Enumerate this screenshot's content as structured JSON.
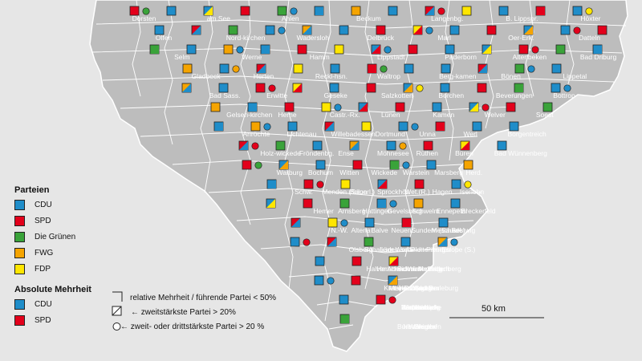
{
  "map": {
    "colors": {
      "background": "#e6e6e6",
      "land": "#bdbdbd",
      "border": "#ffffff",
      "cdu": "#1f8dc9",
      "spd": "#e3001b",
      "gruene": "#3aa33a",
      "fwg": "#f5a400",
      "fdp": "#ffe600"
    },
    "place_labels": [
      "Dorsten",
      "am See",
      "Ahlen",
      "Beckum",
      "Langenbg.",
      "B. Lippspr.",
      "Höxter",
      "Olfen",
      "Nord-kirchen",
      "Wadersloh",
      "Delbrück",
      "Marl",
      "Oer-Erk.",
      "Datteln",
      "Selm",
      "Werne",
      "Hamm",
      "Lippstadt",
      "Paderborn",
      "Altenbeken",
      "Bad Driburg",
      "Gladbeck",
      "Herten",
      "Reckl-hsn.",
      "Waltrop",
      "Berg-kamen",
      "Bönen",
      "Lippetal",
      "Bad Sass.",
      "Erwitte",
      "Geseke",
      "Salzkotten",
      "Borchen",
      "Beverungen",
      "Bottrop",
      "Gelsen-kirchen",
      "Herne",
      "Castr.-Rx.",
      "Lünen",
      "Kamen",
      "Welver",
      "Soest",
      "Anröchte",
      "Lichtenau",
      "Willebadessen",
      "Dortmund",
      "Unna",
      "Werl",
      "Borgentreich",
      "Holz-wickede",
      "Fröndenbg.",
      "Ense",
      "Möhnesee",
      "Rüthen",
      "Büren",
      "Bad Wünnenberg",
      "Warburg",
      "Bochum",
      "Witten",
      "Wickede",
      "Warstein",
      "Marsberg",
      "Herd.",
      "Schw.",
      "Menden (Sauerl.)",
      "Brilon",
      "Sprockhöv.",
      "Wet.(R.)",
      "Hagen",
      "Iserlohn",
      "Hemer",
      "Arnsberg",
      "Hattingen",
      "Gevelsberg",
      "Schwelm",
      "Ennepetal",
      "Breckerfeld",
      "N.-W.",
      "Altena",
      "Balve",
      "Neuenr.",
      "Sundern (Sauerl.)",
      "Meschede",
      "Bestwig",
      "Olsberg",
      "Schalksm.",
      "Lüden-scheid",
      "Werd.",
      "Plettenberg",
      "Finnentrop",
      "Eslohe (S.)",
      "Halver",
      "Herscheid",
      "Attendorn",
      "Schmallenberg",
      "Winterberg",
      "Medebach",
      "Hallenberg",
      "Kierspe",
      "Meinerzhagen",
      "Lennestadt",
      "Kirchhundem",
      "Drolshagen",
      "Olpe",
      "Bad Berleburg",
      "Wenden",
      "Kreuztal",
      "Hilchenbach",
      "Erndtebrück",
      "Netphen",
      "Bad Laasphe",
      "Freudenberg",
      "Siegen",
      "Wilnsdorf",
      "Neunkirchen",
      "Burbach"
    ]
  },
  "legend": {
    "parteien_title": "Parteien",
    "parteien": [
      {
        "label": "CDU",
        "color": "#1f8dc9"
      },
      {
        "label": "SPD",
        "color": "#e3001b"
      },
      {
        "label": "Die Grünen",
        "color": "#3aa33a"
      },
      {
        "label": "FWG",
        "color": "#f5a400"
      },
      {
        "label": "FDP",
        "color": "#ffe600"
      }
    ],
    "mehrheit_title": "Absolute Mehrheit",
    "mehrheit": [
      {
        "label": "CDU",
        "color": "#1f8dc9"
      },
      {
        "label": "SPD",
        "color": "#e3001b"
      }
    ],
    "notes": {
      "relative": "relative Mehrheit / führende Partei < 50%",
      "zweit": "zweitstärkste Partei > 20%",
      "dritt": "zweit- oder drittstärkste Partei > 20 %"
    },
    "scale_label": "50 km"
  }
}
